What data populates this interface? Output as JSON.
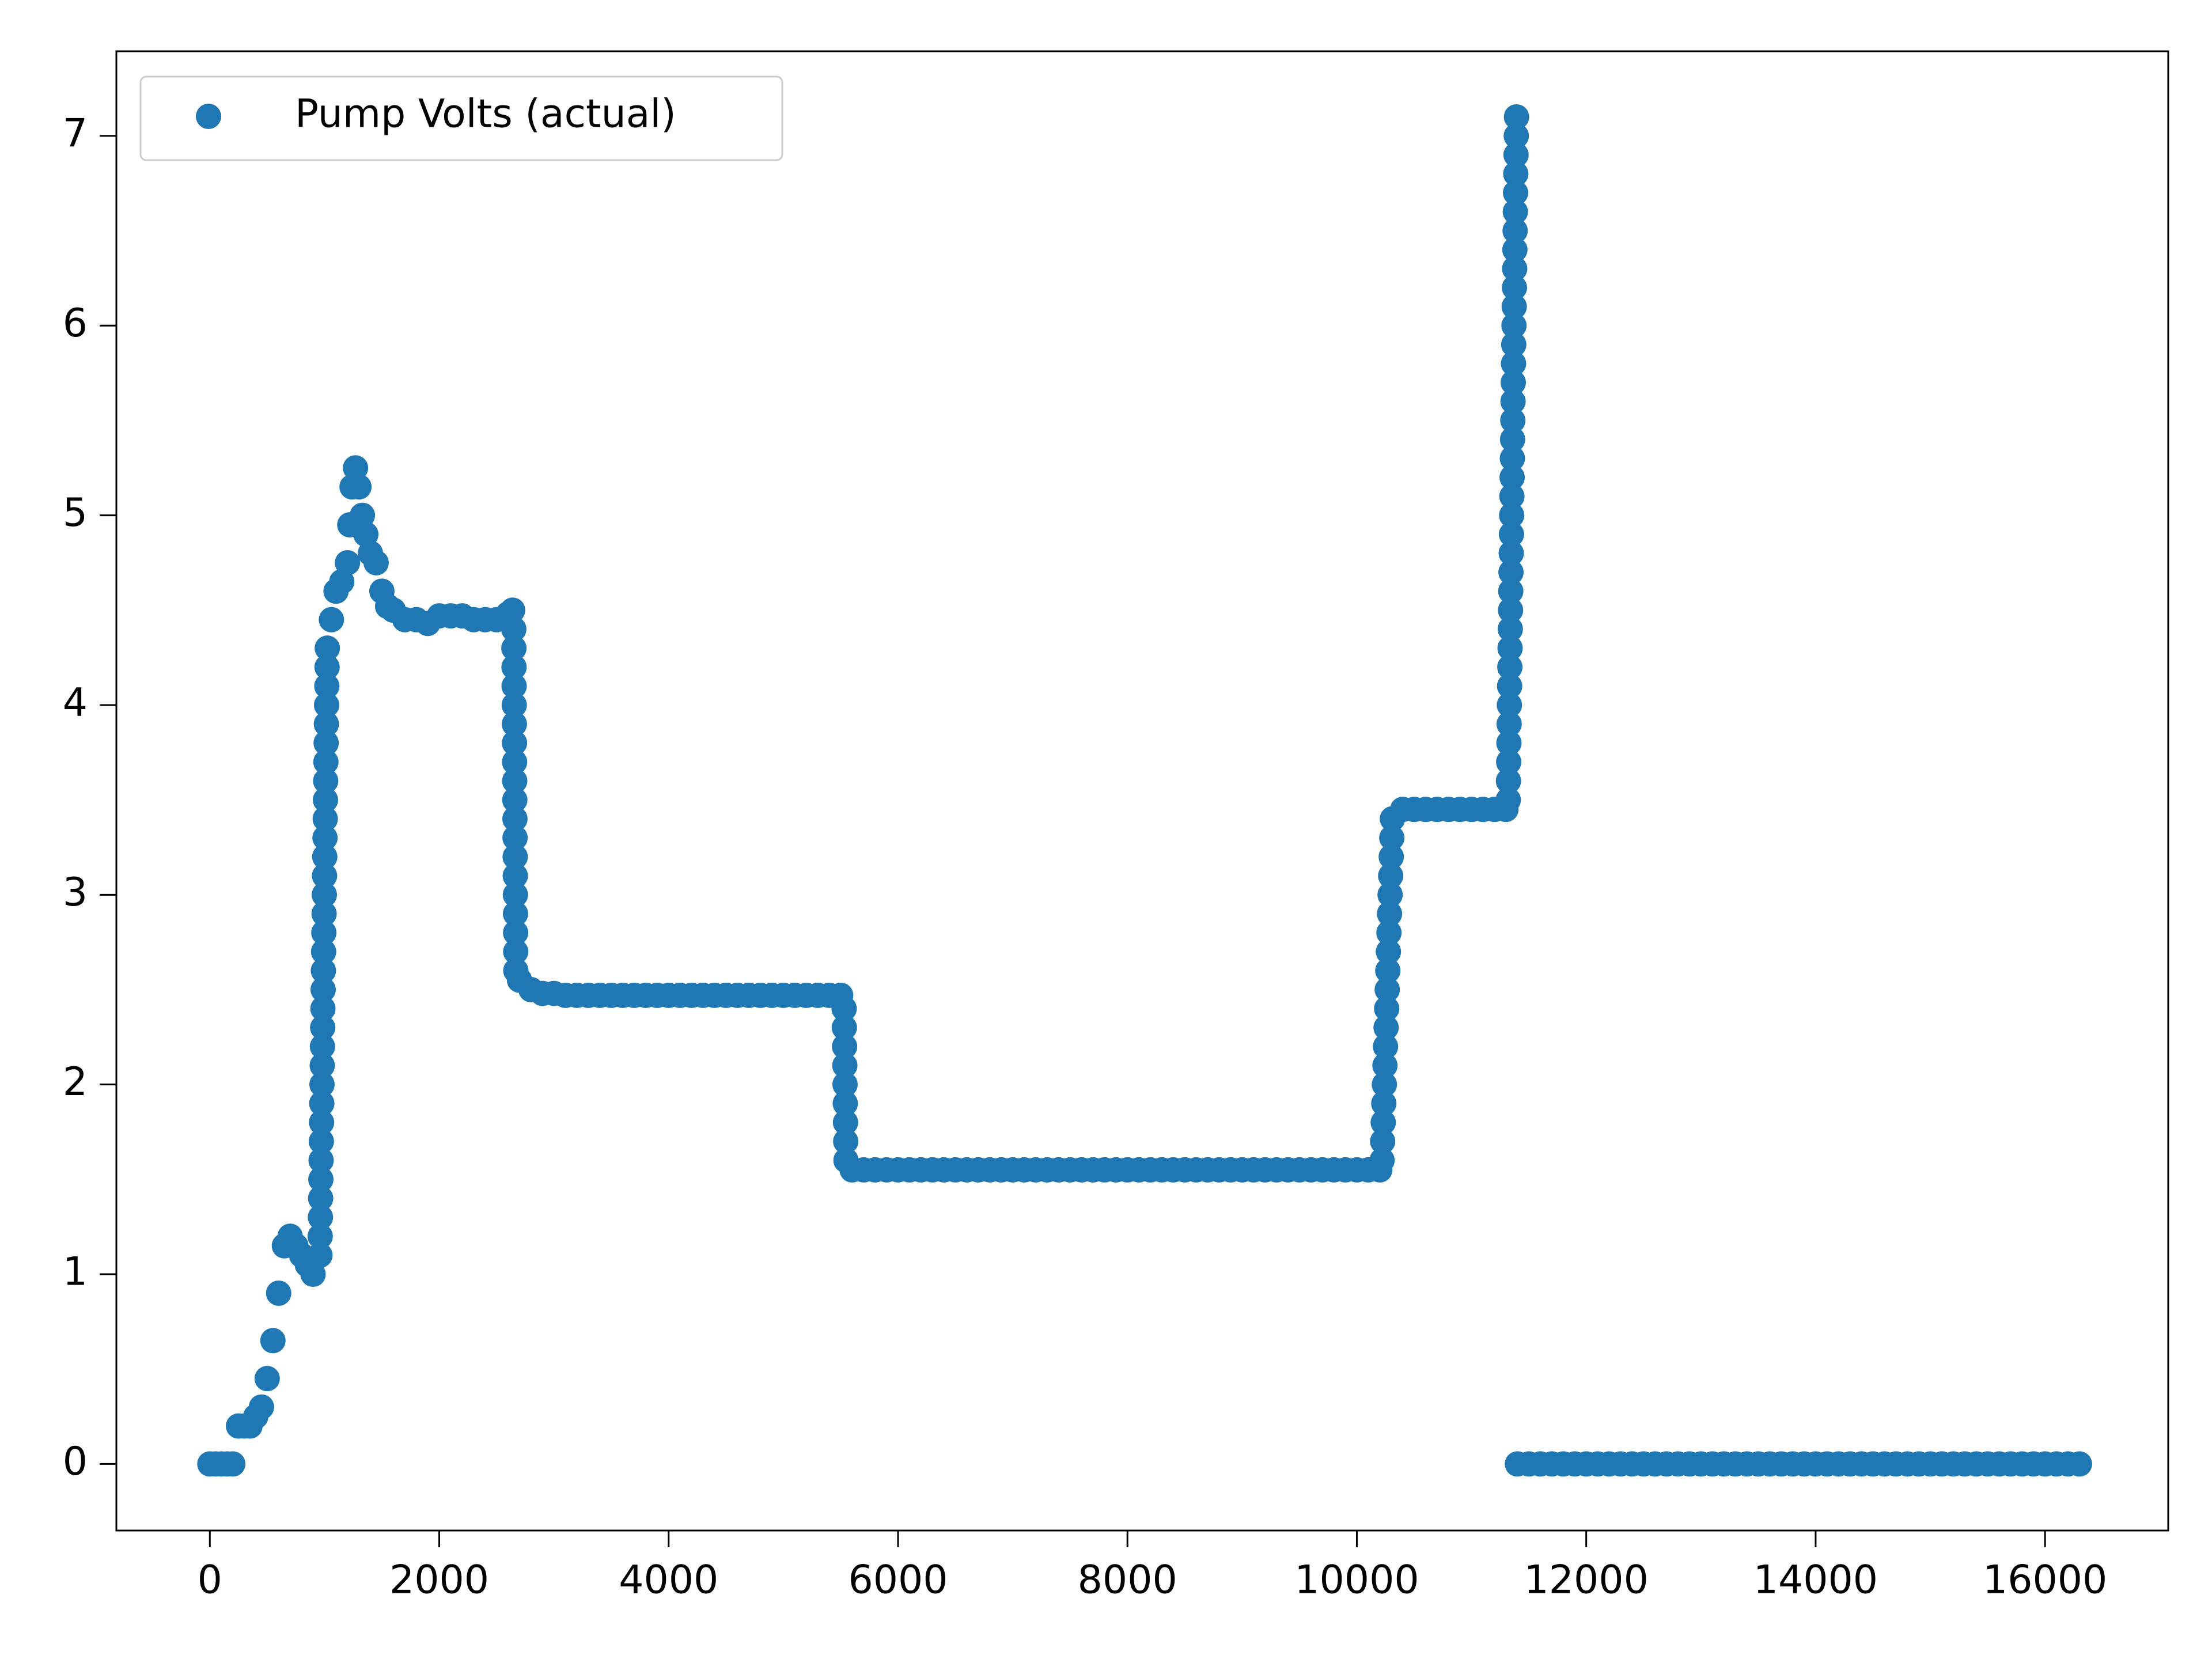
{
  "chart_data": {
    "type": "scatter",
    "series": [
      {
        "name": "Pump Volts (actual)",
        "color": "#1f77b4",
        "x": [
          0,
          50,
          100,
          150,
          200,
          250,
          300,
          350,
          400,
          450,
          500,
          550,
          600,
          650,
          700,
          750,
          800,
          850,
          900,
          960,
          962,
          964,
          966,
          968,
          970,
          972,
          974,
          976,
          978,
          980,
          982,
          984,
          986,
          988,
          990,
          992,
          994,
          996,
          998,
          1000,
          1002,
          1004,
          1006,
          1008,
          1010,
          1012,
          1014,
          1016,
          1018,
          1020,
          1022,
          1024,
          1060,
          1100,
          1150,
          1200,
          1220,
          1240,
          1270,
          1300,
          1330,
          1360,
          1400,
          1450,
          1500,
          1550,
          1600,
          1700,
          1800,
          1900,
          2000,
          2100,
          2200,
          2300,
          2400,
          2500,
          2600,
          2640,
          2650,
          2651,
          2652,
          2653,
          2654,
          2655,
          2656,
          2657,
          2658,
          2659,
          2660,
          2661,
          2662,
          2663,
          2664,
          2665,
          2666,
          2667,
          2668,
          2700,
          2800,
          2900,
          3000,
          3100,
          3200,
          3300,
          3400,
          3500,
          3600,
          3700,
          3800,
          3900,
          4000,
          4100,
          4200,
          4300,
          4400,
          4500,
          4600,
          4700,
          4800,
          4900,
          5000,
          5100,
          5200,
          5300,
          5400,
          5500,
          5530,
          5532,
          5534,
          5536,
          5538,
          5540,
          5542,
          5544,
          5546,
          5600,
          5700,
          5800,
          5900,
          6000,
          6100,
          6200,
          6300,
          6400,
          6500,
          6600,
          6700,
          6800,
          6900,
          7000,
          7100,
          7200,
          7300,
          7400,
          7500,
          7600,
          7700,
          7800,
          7900,
          8000,
          8100,
          8200,
          8300,
          8400,
          8500,
          8600,
          8700,
          8800,
          8900,
          9000,
          9100,
          9200,
          9300,
          9400,
          9500,
          9600,
          9700,
          9800,
          9900,
          10000,
          10100,
          10200,
          10220,
          10225,
          10230,
          10235,
          10240,
          10245,
          10250,
          10255,
          10260,
          10265,
          10270,
          10275,
          10280,
          10285,
          10290,
          10295,
          10300,
          10305,
          10310,
          10400,
          10500,
          10600,
          10700,
          10800,
          10900,
          11000,
          11100,
          11200,
          11300,
          11320,
          11322,
          11324,
          11326,
          11328,
          11330,
          11332,
          11334,
          11336,
          11338,
          11340,
          11342,
          11344,
          11346,
          11348,
          11350,
          11352,
          11354,
          11356,
          11358,
          11360,
          11362,
          11364,
          11366,
          11368,
          11370,
          11372,
          11374,
          11376,
          11378,
          11380,
          11382,
          11384,
          11386,
          11388,
          11390,
          11392,
          11400,
          11500,
          11600,
          11700,
          11800,
          11900,
          12000,
          12100,
          12200,
          12300,
          12400,
          12500,
          12600,
          12700,
          12800,
          12900,
          13000,
          13100,
          13200,
          13300,
          13400,
          13500,
          13600,
          13700,
          13800,
          13900,
          14000,
          14100,
          14200,
          14300,
          14400,
          14500,
          14600,
          14700,
          14800,
          14900,
          15000,
          15100,
          15200,
          15300,
          15400,
          15500,
          15600,
          15700,
          15800,
          15900,
          16000,
          16100,
          16200,
          16300
        ],
        "values": [
          0,
          0,
          0,
          0,
          0,
          0.2,
          0.2,
          0.2,
          0.25,
          0.3,
          0.45,
          0.65,
          0.9,
          1.15,
          1.2,
          1.15,
          1.1,
          1.05,
          1.0,
          1.1,
          1.2,
          1.3,
          1.4,
          1.5,
          1.6,
          1.7,
          1.8,
          1.9,
          2.0,
          2.1,
          2.2,
          2.3,
          2.4,
          2.5,
          2.6,
          2.7,
          2.8,
          2.9,
          3.0,
          3.1,
          3.2,
          3.3,
          3.4,
          3.5,
          3.6,
          3.7,
          3.8,
          3.9,
          4.0,
          4.1,
          4.2,
          4.3,
          4.45,
          4.6,
          4.65,
          4.75,
          4.95,
          5.15,
          5.25,
          5.15,
          5.0,
          4.9,
          4.8,
          4.75,
          4.6,
          4.52,
          4.5,
          4.45,
          4.45,
          4.43,
          4.47,
          4.47,
          4.47,
          4.45,
          4.45,
          4.45,
          4.48,
          4.5,
          4.4,
          4.3,
          4.2,
          4.1,
          4.0,
          3.9,
          3.8,
          3.7,
          3.6,
          3.5,
          3.4,
          3.3,
          3.2,
          3.1,
          3.0,
          2.9,
          2.8,
          2.7,
          2.6,
          2.55,
          2.5,
          2.48,
          2.48,
          2.47,
          2.47,
          2.47,
          2.47,
          2.47,
          2.47,
          2.47,
          2.47,
          2.47,
          2.47,
          2.47,
          2.47,
          2.47,
          2.47,
          2.47,
          2.47,
          2.47,
          2.47,
          2.47,
          2.47,
          2.47,
          2.47,
          2.47,
          2.47,
          2.47,
          2.4,
          2.3,
          2.2,
          2.1,
          2.0,
          1.9,
          1.8,
          1.7,
          1.6,
          1.55,
          1.55,
          1.55,
          1.55,
          1.55,
          1.55,
          1.55,
          1.55,
          1.55,
          1.55,
          1.55,
          1.55,
          1.55,
          1.55,
          1.55,
          1.55,
          1.55,
          1.55,
          1.55,
          1.55,
          1.55,
          1.55,
          1.55,
          1.55,
          1.55,
          1.55,
          1.55,
          1.55,
          1.55,
          1.55,
          1.55,
          1.55,
          1.55,
          1.55,
          1.55,
          1.55,
          1.55,
          1.55,
          1.55,
          1.55,
          1.55,
          1.55,
          1.55,
          1.55,
          1.55,
          1.55,
          1.55,
          1.6,
          1.7,
          1.8,
          1.9,
          2.0,
          2.1,
          2.2,
          2.3,
          2.4,
          2.5,
          2.6,
          2.7,
          2.8,
          2.9,
          3.0,
          3.1,
          3.2,
          3.3,
          3.4,
          3.45,
          3.45,
          3.45,
          3.45,
          3.45,
          3.45,
          3.45,
          3.45,
          3.45,
          3.45,
          3.5,
          3.6,
          3.7,
          3.8,
          3.9,
          4.0,
          4.1,
          4.2,
          4.3,
          4.4,
          4.5,
          4.6,
          4.7,
          4.8,
          4.9,
          5.0,
          5.1,
          5.2,
          5.3,
          5.4,
          5.5,
          5.6,
          5.7,
          5.8,
          5.9,
          6.0,
          6.1,
          6.2,
          6.3,
          6.4,
          6.5,
          6.6,
          6.7,
          6.8,
          6.9,
          7.0,
          7.1,
          0,
          0,
          0,
          0,
          0,
          0,
          0,
          0,
          0,
          0,
          0,
          0,
          0,
          0,
          0,
          0,
          0,
          0,
          0,
          0,
          0,
          0,
          0,
          0,
          0,
          0,
          0,
          0,
          0,
          0,
          0,
          0,
          0,
          0,
          0,
          0,
          0,
          0,
          0,
          0,
          0,
          0,
          0,
          0,
          0,
          0,
          0,
          0,
          0,
          0
        ]
      }
    ],
    "xlim": [
      -815,
      17074
    ],
    "ylim": [
      -0.351,
      7.446
    ],
    "xticks": [
      0,
      2000,
      4000,
      6000,
      8000,
      10000,
      12000,
      14000,
      16000
    ],
    "yticks": [
      0,
      1,
      2,
      3,
      4,
      5,
      6,
      7
    ],
    "legend": "upper left"
  }
}
